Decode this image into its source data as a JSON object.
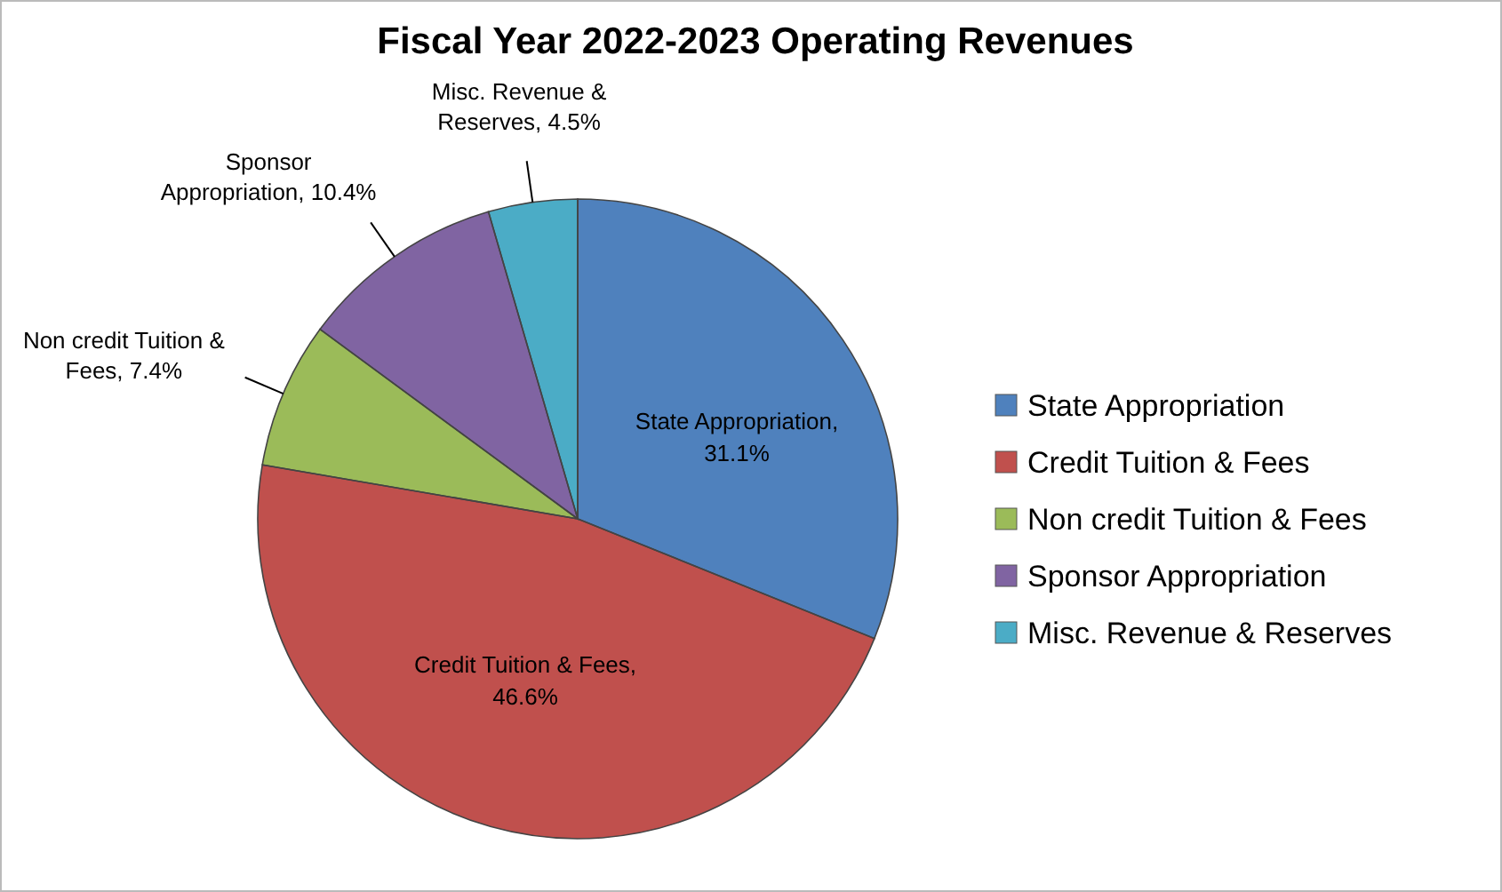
{
  "chart_data": {
    "type": "pie",
    "title": "Fiscal Year 2022-2023 Operating Revenues",
    "categories": [
      "State Appropriation",
      "Credit Tuition & Fees",
      "Non credit Tuition & Fees",
      "Sponsor Appropriation",
      "Misc. Revenue & Reserves"
    ],
    "values": [
      31.1,
      46.6,
      7.4,
      10.4,
      4.5
    ],
    "colors": [
      "#4f81bd",
      "#c0504d",
      "#9bbb59",
      "#8064a2",
      "#4bacc6"
    ],
    "value_labels": [
      "State Appropriation, 31.1%",
      "Credit Tuition & Fees, 46.6%",
      "Non credit Tuition & Fees, 7.4%",
      "Sponsor Appropriation, 10.4%",
      "Misc. Revenue & Reserves, 4.5%"
    ],
    "legend": "right"
  }
}
